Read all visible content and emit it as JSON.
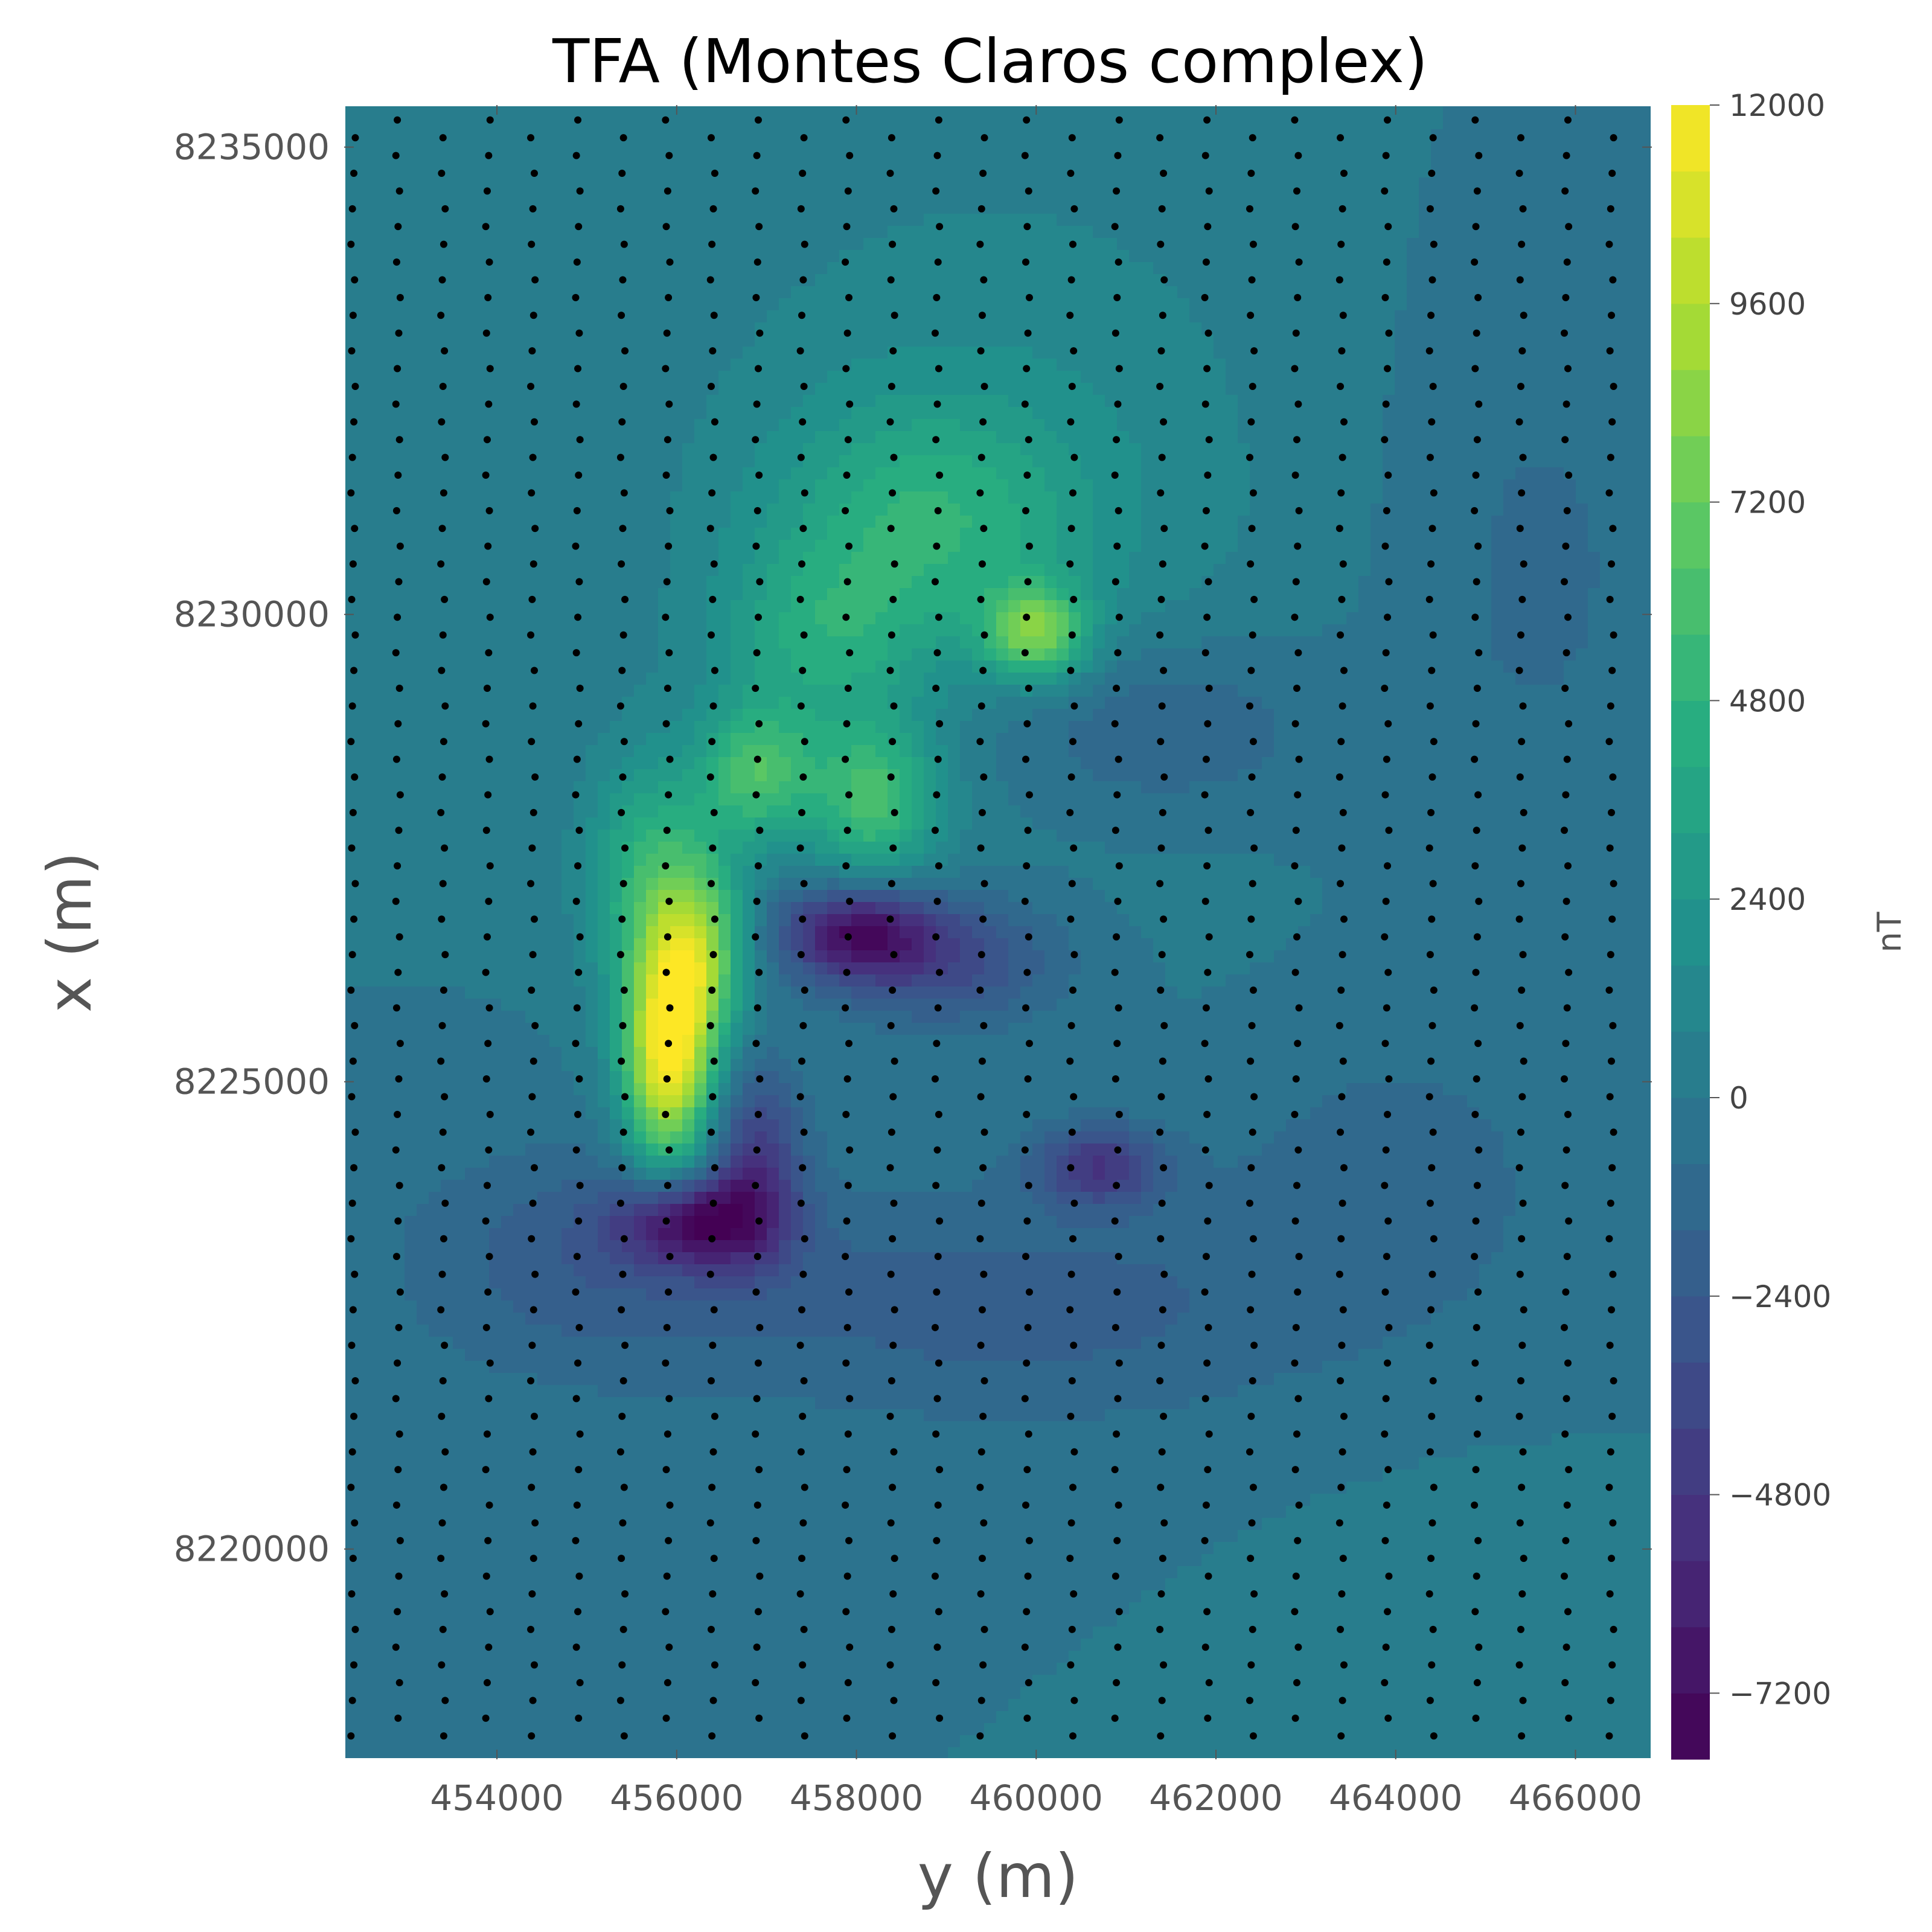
{
  "chart_data": {
    "type": "heatmap",
    "title": "TFA (Montes Claros complex)",
    "xlabel": "y (m)",
    "ylabel": "x (m)",
    "xlim": [
      452300,
      466850
    ],
    "ylim": [
      8217750,
      8235450
    ],
    "x_ticks": [
      454000,
      456000,
      458000,
      460000,
      462000,
      464000,
      466000
    ],
    "y_ticks": [
      8220000,
      8225000,
      8230000,
      8235000
    ],
    "x_tick_labels": [
      "454000",
      "456000",
      "458000",
      "460000",
      "462000",
      "464000",
      "466000"
    ],
    "y_tick_labels": [
      "8220000",
      "8225000",
      "8230000",
      "8235000"
    ],
    "colorbar": {
      "label": "nT",
      "min": -8000,
      "max": 12000,
      "ticks": [
        -7200,
        -4800,
        -2400,
        0,
        2400,
        4800,
        7200,
        9600,
        12000
      ],
      "tick_labels": [
        "−7200",
        "−4800",
        "−2400",
        "0",
        "2400",
        "4800",
        "7200",
        "9600",
        "12000"
      ],
      "colormap": "viridis"
    },
    "grid": false,
    "background_value_nT": 0,
    "anomalies": [
      {
        "y": 455900,
        "x": 8225300,
        "amplitude": 12000,
        "sy": 350,
        "sx": 900
      },
      {
        "y": 456300,
        "x": 8226400,
        "amplitude": 6000,
        "sy": 350,
        "sx": 700
      },
      {
        "y": 455700,
        "x": 8227200,
        "amplitude": 4500,
        "sy": 500,
        "sx": 900
      },
      {
        "y": 456900,
        "x": 8228300,
        "amplitude": 5500,
        "sy": 450,
        "sx": 500
      },
      {
        "y": 458200,
        "x": 8228000,
        "amplitude": 5500,
        "sy": 500,
        "sx": 600
      },
      {
        "y": 458800,
        "x": 8231000,
        "amplitude": 3500,
        "sy": 1200,
        "sx": 900
      },
      {
        "y": 457600,
        "x": 8229700,
        "amplitude": 3000,
        "sy": 800,
        "sx": 700
      },
      {
        "y": 460000,
        "x": 8229800,
        "amplitude": 7000,
        "sy": 400,
        "sx": 350
      },
      {
        "y": 459500,
        "x": 8231500,
        "amplitude": 1500,
        "sy": 2500,
        "sx": 2500
      },
      {
        "y": 458000,
        "x": 8226600,
        "amplitude": -6500,
        "sy": 600,
        "sx": 350
      },
      {
        "y": 459000,
        "x": 8226300,
        "amplitude": -3500,
        "sy": 900,
        "sx": 500
      },
      {
        "y": 456200,
        "x": 8223500,
        "amplitude": -7000,
        "sy": 600,
        "sx": 350
      },
      {
        "y": 456900,
        "x": 8224200,
        "amplitude": -4000,
        "sy": 350,
        "sx": 700
      },
      {
        "y": 460700,
        "x": 8224100,
        "amplitude": -4500,
        "sy": 500,
        "sx": 300
      },
      {
        "y": 459800,
        "x": 8222600,
        "amplitude": -2000,
        "sy": 2500,
        "sx": 900
      },
      {
        "y": 455000,
        "x": 8223100,
        "amplitude": -2000,
        "sy": 1500,
        "sx": 900
      },
      {
        "y": 461200,
        "x": 8228800,
        "amplitude": -2000,
        "sy": 1400,
        "sx": 700
      },
      {
        "y": 464000,
        "x": 8224000,
        "amplitude": -1200,
        "sy": 1300,
        "sx": 1100
      },
      {
        "y": 465500,
        "x": 8230500,
        "amplitude": -1000,
        "sy": 1200,
        "sx": 2200
      },
      {
        "y": 465000,
        "x": 8219200,
        "amplitude": 700,
        "sy": 1200,
        "sx": 900
      }
    ],
    "survey_lines": {
      "y_start": 452400,
      "y_spacing": 500,
      "count": 29,
      "x_min": 8218000,
      "x_max": 8235350,
      "point_spacing": 380
    }
  }
}
